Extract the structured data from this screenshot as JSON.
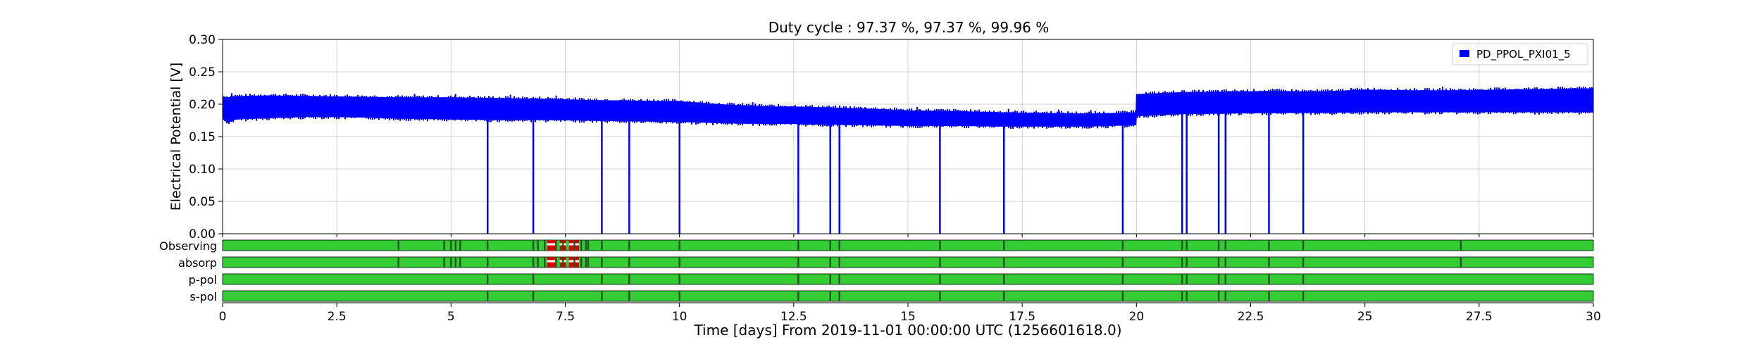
{
  "chart_data": {
    "type": "line",
    "title": "Duty cycle : 97.37 %, 97.37 %, 99.96 %",
    "xlabel": "Time [days] From 2019-11-01 00:00:00 UTC (1256601618.0)",
    "ylabel": "Electrical Potential [V]",
    "xlim": [
      0,
      30
    ],
    "ylim": [
      0,
      0.3
    ],
    "grid": true,
    "x_ticks": [
      0,
      2.5,
      5,
      7.5,
      10,
      12.5,
      15,
      17.5,
      20,
      22.5,
      25,
      27.5,
      30
    ],
    "x_tick_labels": [
      "0",
      "2.5",
      "5",
      "7.5",
      "10",
      "12.5",
      "15",
      "17.5",
      "20",
      "22.5",
      "25",
      "27.5",
      "30"
    ],
    "y_ticks": [
      0,
      0.05,
      0.1,
      0.15,
      0.2,
      0.25,
      0.3
    ],
    "y_tick_labels": [
      "0.00",
      "0.05",
      "0.10",
      "0.15",
      "0.20",
      "0.25",
      "0.30"
    ],
    "legend": {
      "position": "top-right",
      "entries": [
        "PD_PPOL_PXI01_5"
      ]
    },
    "series": [
      {
        "name": "PD_PPOL_PXI01_5",
        "color": "#0000ff",
        "band": {
          "x": [
            0,
            0.1,
            0.3,
            1,
            2,
            3,
            4,
            5,
            6,
            7,
            8,
            9,
            10,
            11,
            12,
            12.5,
            13,
            14,
            15,
            16,
            17,
            18,
            19,
            19.99,
            20.0,
            21,
            22,
            23,
            24,
            25,
            26,
            27,
            28,
            29,
            30
          ],
          "low": [
            0.178,
            0.172,
            0.177,
            0.179,
            0.181,
            0.18,
            0.178,
            0.177,
            0.176,
            0.176,
            0.175,
            0.174,
            0.173,
            0.171,
            0.17,
            0.17,
            0.169,
            0.168,
            0.167,
            0.167,
            0.166,
            0.166,
            0.166,
            0.168,
            0.182,
            0.185,
            0.186,
            0.187,
            0.187,
            0.188,
            0.188,
            0.188,
            0.188,
            0.188,
            0.188
          ],
          "high": [
            0.212,
            0.21,
            0.212,
            0.213,
            0.212,
            0.211,
            0.21,
            0.21,
            0.209,
            0.208,
            0.206,
            0.205,
            0.204,
            0.199,
            0.196,
            0.196,
            0.195,
            0.193,
            0.19,
            0.189,
            0.187,
            0.186,
            0.185,
            0.187,
            0.215,
            0.218,
            0.219,
            0.22,
            0.219,
            0.222,
            0.221,
            0.221,
            0.222,
            0.223,
            0.224
          ]
        },
        "dropouts": [
          5.8,
          6.8,
          8.3,
          8.9,
          10.0,
          12.6,
          13.3,
          13.5,
          15.7,
          17.1,
          19.7,
          21.0,
          21.1,
          21.8,
          21.95,
          22.9,
          23.65
        ],
        "spikes": [
          0.2,
          4.2,
          5.1,
          6.3,
          7.3,
          11.6,
          15.2,
          17.2,
          18.3,
          19.0,
          26.7
        ]
      }
    ],
    "segment_bars": [
      {
        "label": "Observing",
        "dark_marks": [
          3.85,
          4.85,
          5.0,
          5.1,
          5.2,
          5.8,
          6.8,
          6.9,
          7.05,
          7.3,
          7.45,
          7.7,
          7.85,
          7.95,
          8.0,
          8.3,
          8.9,
          10.0,
          12.6,
          13.3,
          13.5,
          15.7,
          17.1,
          19.7,
          21.0,
          21.1,
          21.8,
          21.95,
          22.9,
          23.65,
          27.1
        ],
        "gaps": [
          [
            7.1,
            7.28
          ],
          [
            7.38,
            7.52
          ],
          [
            7.58,
            7.8
          ]
        ]
      },
      {
        "label": "absorp",
        "dark_marks": [
          3.85,
          4.85,
          5.0,
          5.1,
          5.2,
          5.8,
          6.8,
          6.9,
          7.05,
          7.3,
          7.45,
          7.7,
          7.85,
          7.95,
          8.0,
          8.3,
          8.9,
          10.0,
          12.6,
          13.3,
          13.5,
          15.7,
          17.1,
          19.7,
          21.0,
          21.1,
          21.8,
          21.95,
          22.9,
          23.65,
          27.1
        ],
        "gaps": [
          [
            7.1,
            7.28
          ],
          [
            7.38,
            7.52
          ],
          [
            7.58,
            7.8
          ]
        ]
      },
      {
        "label": "p-pol",
        "dark_marks": [
          5.8,
          6.8,
          8.3,
          8.9,
          10.0,
          12.6,
          13.3,
          13.5,
          15.7,
          17.1,
          19.7,
          21.0,
          21.1,
          21.8,
          21.95,
          22.9,
          23.65
        ],
        "gaps": []
      },
      {
        "label": "s-pol",
        "dark_marks": [
          5.8,
          6.8,
          8.3,
          8.9,
          10.0,
          12.6,
          13.3,
          13.5,
          15.7,
          17.1,
          19.7,
          21.0,
          21.1,
          21.8,
          21.95,
          22.9,
          23.65
        ],
        "gaps": []
      }
    ],
    "segment_colors": {
      "active": "#33cc33",
      "inactive": "#dd0000",
      "mark": "#225522"
    }
  }
}
